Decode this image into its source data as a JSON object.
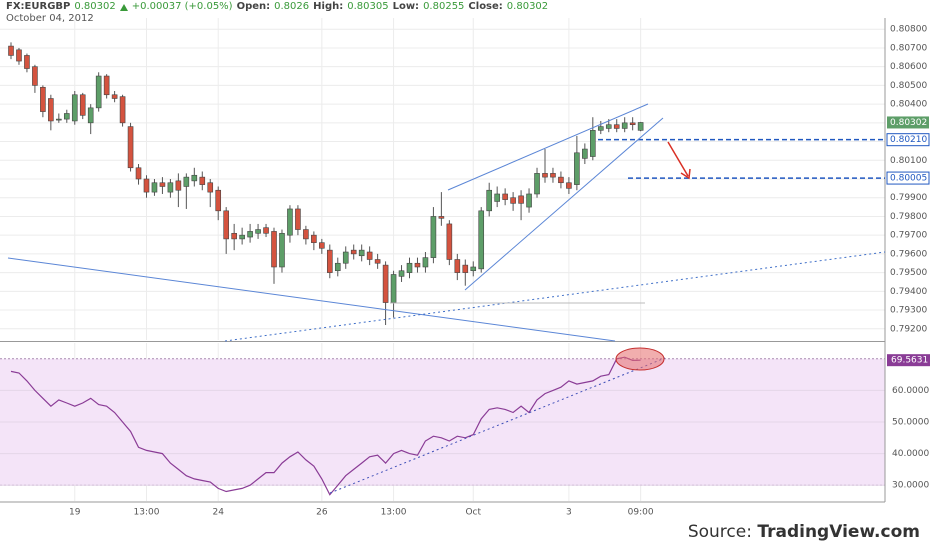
{
  "header": {
    "symbol": "FX:EURGBP",
    "change": "+0.00037 (+0.05%)",
    "open_label": "Open:",
    "high_label": "High:",
    "low_label": "Low:",
    "close_label": "Close:",
    "date": "October 04, 2012"
  },
  "source": {
    "prefix": "Source:",
    "name": "TradingView.com"
  },
  "chart_data": [
    {
      "type": "candlestick",
      "categories": [
        null,
        null,
        null,
        null,
        null,
        null,
        null,
        null,
        "19",
        null,
        null,
        null,
        null,
        null,
        null,
        null,
        null,
        "13:00",
        null,
        null,
        null,
        null,
        null,
        null,
        null,
        null,
        "24",
        null,
        null,
        null,
        null,
        null,
        null,
        null,
        null,
        null,
        null,
        null,
        null,
        "26",
        null,
        null,
        null,
        null,
        null,
        null,
        null,
        null,
        "13:00",
        null,
        null,
        null,
        null,
        null,
        null,
        null,
        null,
        null,
        "Oct",
        null,
        null,
        null,
        null,
        null,
        null,
        null,
        null,
        null,
        null,
        null,
        "3",
        null,
        null,
        null,
        null,
        null,
        null,
        null,
        null,
        "09:00"
      ],
      "open": [
        0.8071,
        0.8069,
        0.8066,
        0.806,
        0.8049,
        0.8043,
        0.8032,
        0.8032,
        0.8031,
        0.8045,
        0.803,
        0.8038,
        0.8055,
        0.8045,
        0.8044,
        0.8028,
        0.8006,
        0.8,
        0.7993,
        0.7998,
        0.7993,
        0.7999,
        0.7996,
        0.7999,
        0.8001,
        0.7998,
        0.7994,
        0.7983,
        0.7971,
        0.7968,
        0.7969,
        0.7971,
        0.7974,
        0.7972,
        0.7953,
        0.797,
        0.7984,
        0.7973,
        0.797,
        0.7966,
        0.7962,
        0.7951,
        0.7955,
        0.7962,
        0.7959,
        0.7961,
        0.7957,
        0.7954,
        0.7934,
        0.7948,
        0.795,
        0.7955,
        0.7953,
        0.7958,
        0.798,
        0.7976,
        0.7957,
        0.7954,
        0.7951,
        0.7952,
        0.7983,
        0.7988,
        0.7992,
        0.799,
        0.7991,
        0.7985,
        0.7992,
        0.8003,
        0.8003,
        0.8001,
        0.7998,
        0.7997,
        0.8011,
        0.8012,
        0.8026,
        0.8027,
        0.8029,
        0.8027,
        0.803,
        0.8026
      ],
      "high": [
        0.8073,
        0.807,
        0.8067,
        0.8061,
        0.805,
        0.8045,
        0.8035,
        0.8037,
        0.8047,
        0.8046,
        0.804,
        0.8057,
        0.8056,
        0.8047,
        0.8045,
        0.803,
        0.8008,
        0.8002,
        0.8,
        0.8001,
        0.8,
        0.8003,
        0.8003,
        0.8006,
        0.8004,
        0.8,
        0.7996,
        0.7985,
        0.7976,
        0.7974,
        0.7976,
        0.7976,
        0.7976,
        0.7974,
        0.7973,
        0.7986,
        0.7986,
        0.7975,
        0.7972,
        0.7968,
        0.7965,
        0.7958,
        0.7964,
        0.7965,
        0.7965,
        0.7964,
        0.796,
        0.7956,
        0.7951,
        0.7954,
        0.7958,
        0.7958,
        0.7961,
        0.7985,
        0.7993,
        0.7978,
        0.796,
        0.7957,
        0.7956,
        0.7985,
        0.7998,
        0.7996,
        0.7995,
        0.7993,
        0.7994,
        0.7995,
        0.8006,
        0.8016,
        0.8006,
        0.8004,
        0.8001,
        0.8023,
        0.8019,
        0.8033,
        0.8031,
        0.8032,
        0.8032,
        0.8033,
        0.8033,
        0.80305
      ],
      "low": [
        0.8064,
        0.8061,
        0.8057,
        0.8046,
        0.8033,
        0.8026,
        0.803,
        0.803,
        0.8029,
        0.8032,
        0.8024,
        0.8036,
        0.8043,
        0.8041,
        0.8028,
        0.8004,
        0.7997,
        0.799,
        0.7991,
        0.7992,
        0.799,
        0.7985,
        0.7984,
        0.7996,
        0.7994,
        0.7985,
        0.7978,
        0.796,
        0.7962,
        0.7965,
        0.7966,
        0.7968,
        0.7969,
        0.7944,
        0.795,
        0.7966,
        0.797,
        0.7965,
        0.7962,
        0.796,
        0.7947,
        0.7948,
        0.7952,
        0.7957,
        0.7956,
        0.7954,
        0.7952,
        0.7922,
        0.7926,
        0.7945,
        0.7947,
        0.795,
        0.795,
        0.7955,
        0.7975,
        0.7954,
        0.7946,
        0.7943,
        0.7948,
        0.795,
        0.798,
        0.7985,
        0.7986,
        0.7983,
        0.7978,
        0.7982,
        0.799,
        0.7998,
        0.7998,
        0.7995,
        0.7992,
        0.7994,
        0.8008,
        0.801,
        0.8024,
        0.8025,
        0.8025,
        0.8025,
        0.8026,
        0.80255
      ],
      "close": [
        0.8066,
        0.8063,
        0.8059,
        0.805,
        0.8036,
        0.8031,
        0.8032,
        0.8035,
        0.8045,
        0.8034,
        0.8038,
        0.8055,
        0.8045,
        0.8043,
        0.803,
        0.8006,
        0.8,
        0.7993,
        0.7998,
        0.7996,
        0.7998,
        0.7994,
        0.8001,
        0.8002,
        0.7997,
        0.7993,
        0.7983,
        0.7968,
        0.7968,
        0.797,
        0.7972,
        0.7973,
        0.7971,
        0.7953,
        0.7971,
        0.7984,
        0.7973,
        0.7968,
        0.7966,
        0.7963,
        0.795,
        0.7955,
        0.7961,
        0.796,
        0.7962,
        0.7957,
        0.7955,
        0.7934,
        0.7949,
        0.7951,
        0.7955,
        0.7953,
        0.7958,
        0.798,
        0.7979,
        0.7957,
        0.795,
        0.795,
        0.7953,
        0.7983,
        0.7994,
        0.7992,
        0.7989,
        0.7987,
        0.7987,
        0.7992,
        0.8003,
        0.8001,
        0.8001,
        0.7998,
        0.7995,
        0.8014,
        0.8016,
        0.8026,
        0.8028,
        0.8029,
        0.8027,
        0.803,
        0.8029,
        0.80302
      ],
      "up_color": "#5d9e68",
      "down_color": "#d4533f",
      "ylim": [
        0.7914,
        0.8086
      ],
      "yticks": [
        {
          "value": 0.808,
          "label": "0.80800"
        },
        {
          "value": 0.807,
          "label": "0.80700"
        },
        {
          "value": 0.806,
          "label": "0.80600"
        },
        {
          "value": 0.805,
          "label": "0.80500"
        },
        {
          "value": 0.804,
          "label": "0.80400"
        },
        {
          "value": 0.803,
          "label": "0.80300"
        },
        {
          "value": 0.802,
          "label": "0.80200"
        },
        {
          "value": 0.801,
          "label": "0.80100"
        },
        {
          "value": 0.8,
          "label": "0.80000"
        },
        {
          "value": 0.799,
          "label": "0.79900"
        },
        {
          "value": 0.798,
          "label": "0.79800"
        },
        {
          "value": 0.797,
          "label": "0.79700"
        },
        {
          "value": 0.796,
          "label": "0.79600"
        },
        {
          "value": 0.795,
          "label": "0.79500"
        },
        {
          "value": 0.794,
          "label": "0.79400"
        },
        {
          "value": 0.793,
          "label": "0.79300"
        },
        {
          "value": 0.792,
          "label": "0.79200"
        }
      ],
      "levels": [
        {
          "value": 0.8021,
          "label": "0.80210"
        },
        0.80005
      ],
      "level_color": "#2058c0",
      "grid": true
    },
    {
      "type": "line",
      "values": [
        66,
        65.5,
        63,
        60,
        57.5,
        55,
        57,
        56,
        55,
        56,
        57.5,
        55.5,
        55,
        53,
        50,
        47,
        42,
        41,
        40.5,
        40,
        37,
        35,
        33,
        32,
        31.5,
        31,
        29,
        28,
        28.5,
        29,
        30,
        32,
        34,
        34,
        37,
        39,
        40.5,
        38,
        36,
        32,
        27,
        30,
        33,
        35,
        37,
        39,
        39.5,
        37,
        40,
        41,
        40,
        39.5,
        44,
        45.5,
        45,
        44,
        45.5,
        45,
        46,
        51,
        54,
        54.5,
        54,
        53,
        55,
        53,
        57,
        59,
        60,
        61,
        63,
        62,
        62.5,
        63,
        64.5,
        65,
        70,
        70.5,
        69.5,
        69.5631
      ],
      "color": "#8a3c96",
      "band_color": "#f4e4f8",
      "bands": [
        30,
        70
      ],
      "ylim": [
        25,
        75
      ],
      "yticks": [
        {
          "value": 30,
          "label": "30.0000"
        },
        {
          "value": 40,
          "label": "40.0000"
        },
        {
          "value": 50,
          "label": "50.0000"
        },
        {
          "value": 60,
          "label": "60.0000"
        }
      ],
      "grid": true
    }
  ]
}
